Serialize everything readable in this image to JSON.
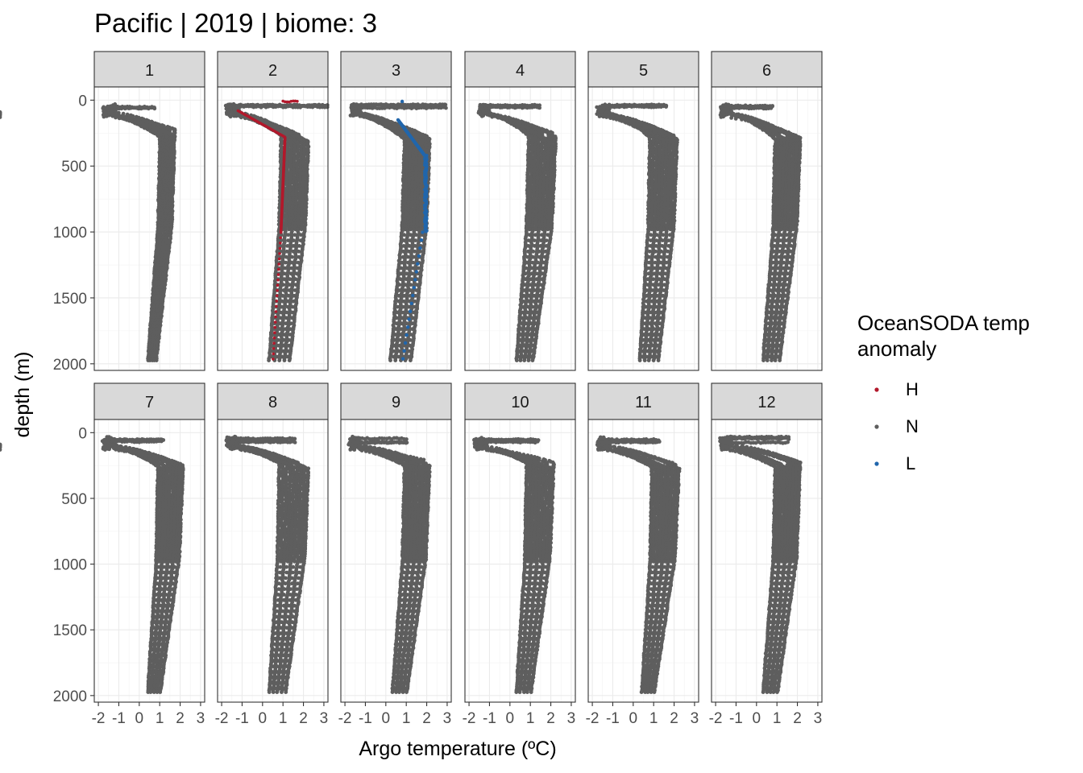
{
  "chart_data": {
    "type": "scatter",
    "title": "Pacific | 2019 | biome: 3",
    "xlabel": "Argo temperature (ºC)",
    "ylabel": "depth (m)",
    "xlim": [
      -2.2,
      3.2
    ],
    "ylim": [
      2050,
      -100
    ],
    "y_reversed": true,
    "grid": true,
    "x_ticks": [
      -2,
      -1,
      0,
      1,
      2,
      3
    ],
    "x_tick_labels": [
      "-2",
      "-1",
      "0",
      "1",
      "2",
      "3"
    ],
    "y_ticks": [
      0,
      500,
      1000,
      1500,
      2000
    ],
    "y_tick_labels": [
      "0",
      "500",
      "1000",
      "1500",
      "2000"
    ],
    "legend": {
      "title_lines": [
        "OceanSODA temp",
        "anomaly"
      ],
      "placement": "right",
      "entries": [
        {
          "label": "H",
          "color": "#b2182b"
        },
        {
          "label": "N",
          "color": "#5e5e5e"
        },
        {
          "label": "L",
          "color": "#2166ac"
        }
      ]
    },
    "panels": [
      {
        "label": "1",
        "surface_min": -1.8,
        "surface_max": 0.8,
        "thermocline_depth": 260,
        "mid_min": 1.0,
        "mid_max": 1.7,
        "deep_min": 0.4,
        "deep_max": 0.8,
        "has_h": false,
        "has_l": false
      },
      {
        "label": "2",
        "surface_min": -1.8,
        "surface_max": 3.2,
        "thermocline_depth": 300,
        "mid_min": 0.9,
        "mid_max": 2.2,
        "deep_min": 0.3,
        "deep_max": 1.3,
        "has_h": true,
        "has_l": false
      },
      {
        "label": "3",
        "surface_min": -1.8,
        "surface_max": 3.0,
        "thermocline_depth": 300,
        "mid_min": 0.9,
        "mid_max": 2.1,
        "deep_min": 0.2,
        "deep_max": 1.2,
        "has_h": false,
        "has_l": true
      },
      {
        "label": "4",
        "surface_min": -1.6,
        "surface_max": 1.5,
        "thermocline_depth": 280,
        "mid_min": 0.9,
        "mid_max": 2.2,
        "deep_min": 0.3,
        "deep_max": 1.1,
        "has_h": false,
        "has_l": false
      },
      {
        "label": "5",
        "surface_min": -1.8,
        "surface_max": 1.7,
        "thermocline_depth": 280,
        "mid_min": 0.8,
        "mid_max": 2.1,
        "deep_min": 0.3,
        "deep_max": 1.2,
        "has_h": false,
        "has_l": false
      },
      {
        "label": "6",
        "surface_min": -1.8,
        "surface_max": 0.8,
        "thermocline_depth": 280,
        "mid_min": 0.9,
        "mid_max": 2.1,
        "deep_min": 0.3,
        "deep_max": 1.1,
        "has_h": false,
        "has_l": false
      },
      {
        "label": "7",
        "surface_min": -1.8,
        "surface_max": 1.2,
        "thermocline_depth": 260,
        "mid_min": 0.9,
        "mid_max": 2.1,
        "deep_min": 0.4,
        "deep_max": 1.0,
        "has_h": false,
        "has_l": false
      },
      {
        "label": "8",
        "surface_min": -1.8,
        "surface_max": 1.6,
        "thermocline_depth": 260,
        "mid_min": 0.8,
        "mid_max": 2.2,
        "deep_min": 0.3,
        "deep_max": 1.1,
        "has_h": false,
        "has_l": false
      },
      {
        "label": "9",
        "surface_min": -1.9,
        "surface_max": 1.1,
        "thermocline_depth": 240,
        "mid_min": 0.9,
        "mid_max": 2.1,
        "deep_min": 0.3,
        "deep_max": 1.0,
        "has_h": false,
        "has_l": false
      },
      {
        "label": "10",
        "surface_min": -1.8,
        "surface_max": 1.4,
        "thermocline_depth": 260,
        "mid_min": 0.8,
        "mid_max": 2.1,
        "deep_min": 0.3,
        "deep_max": 1.0,
        "has_h": false,
        "has_l": false
      },
      {
        "label": "11",
        "surface_min": -1.8,
        "surface_max": 1.3,
        "thermocline_depth": 260,
        "mid_min": 0.9,
        "mid_max": 2.2,
        "deep_min": 0.4,
        "deep_max": 1.0,
        "has_h": false,
        "has_l": false
      },
      {
        "label": "12",
        "surface_min": -1.8,
        "surface_max": 1.6,
        "thermocline_depth": 250,
        "mid_min": 0.9,
        "mid_max": 2.1,
        "deep_min": 0.3,
        "deep_max": 1.0,
        "has_h": false,
        "has_l": false
      }
    ]
  }
}
